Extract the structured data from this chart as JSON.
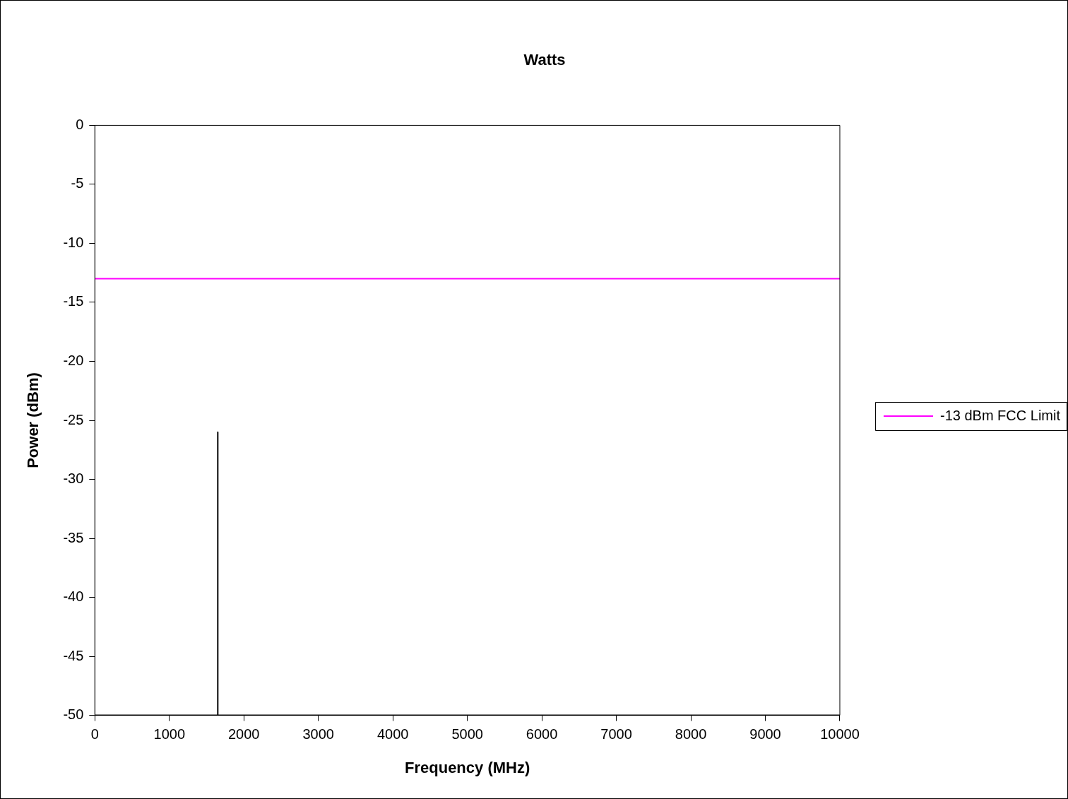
{
  "chart_data": {
    "type": "line",
    "title": "Watts",
    "xlabel": "Frequency (MHz)",
    "ylabel": "Power (dBm)",
    "series": [
      {
        "color": "#000000",
        "x": [
          0,
          1650,
          1650,
          1650,
          10000
        ],
        "values": [
          -50,
          -50,
          -26,
          -50,
          -50
        ]
      },
      {
        "name": "-13 dBm FCC Limit",
        "color": "#ff00ff",
        "x": [
          0,
          10000
        ],
        "values": [
          -13,
          -13
        ]
      }
    ],
    "xlim": [
      0,
      10000
    ],
    "xticks": [
      0,
      1000,
      2000,
      3000,
      4000,
      5000,
      6000,
      7000,
      8000,
      9000,
      10000
    ],
    "ylim": [
      -50,
      0
    ],
    "yticks": [
      -50,
      -45,
      -40,
      -35,
      -30,
      -25,
      -20,
      -15,
      -10,
      -5,
      0
    ],
    "grid": false,
    "legend": "right",
    "marker": "none",
    "line_style": "solid"
  }
}
